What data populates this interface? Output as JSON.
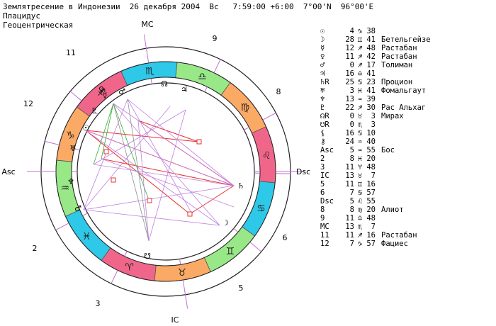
{
  "header": {
    "line1": "Землятресение в Индонезии  26 декабря 2004  Вс   7:59:00 +6:00  7°00'N  96°00'E",
    "line2": "Плацидус",
    "line3": "Геоцентрическая"
  },
  "wheel": {
    "angle_labels": {
      "mc": "MC",
      "ic": "IC",
      "asc": "Asc",
      "dsc": "Dsc"
    },
    "house_numbers": [
      "11",
      "9",
      "8",
      "12",
      "2",
      "6",
      "3",
      "5"
    ],
    "zodiac_glyphs": [
      "♏",
      "♎",
      "♍",
      "♌",
      "♋",
      "♊",
      "♉",
      "♈",
      "♓",
      "♒",
      "♑",
      "♐"
    ],
    "zodiac_colors": {
      "fire": "#f0668a",
      "earth": "#fbaa66",
      "air": "#99e888",
      "water": "#2ec8e8"
    },
    "planet_glyphs": [
      "☉",
      "☽",
      "☿",
      "♀",
      "♂",
      "♃",
      "♄",
      "♅",
      "♆",
      "♇",
      "☊",
      "☋"
    ],
    "aspect_colors": {
      "red": "#e83030",
      "green": "#30b030",
      "violet": "#c080e0",
      "gray": "#909090"
    }
  },
  "positions_table": [
    {
      "glyph": "☉",
      "deg": "4",
      "sign": "♑",
      "min": "38",
      "star": ""
    },
    {
      "glyph": "☽",
      "deg": "28",
      "sign": "♊",
      "min": "41",
      "star": "Бетельгейзе"
    },
    {
      "glyph": "☿",
      "deg": "12",
      "sign": "♐",
      "min": "48",
      "star": "Растабан"
    },
    {
      "glyph": "♀",
      "deg": "11",
      "sign": "♐",
      "min": "42",
      "star": "Растабан"
    },
    {
      "glyph": "♂",
      "deg": "0",
      "sign": "♐",
      "min": "17",
      "star": "Толиман"
    },
    {
      "glyph": "♃",
      "deg": "16",
      "sign": "♎",
      "min": "41",
      "star": ""
    },
    {
      "glyph": "♄R",
      "deg": "25",
      "sign": "♋",
      "min": "23",
      "star": "Процион"
    },
    {
      "glyph": "♅",
      "deg": "3",
      "sign": "♓",
      "min": "41",
      "star": "Фомальгаут"
    },
    {
      "glyph": "♆",
      "deg": "13",
      "sign": "♒",
      "min": "39",
      "star": ""
    },
    {
      "glyph": "♇",
      "deg": "22",
      "sign": "♐",
      "min": "30",
      "star": "Рас Альхаг"
    },
    {
      "glyph": "☊R",
      "deg": "0",
      "sign": "♉",
      "min": "3",
      "star": "Мирах"
    },
    {
      "glyph": "☋R",
      "deg": "0",
      "sign": "♏",
      "min": "3",
      "star": ""
    },
    {
      "glyph": "⚸",
      "deg": "16",
      "sign": "♋",
      "min": "10",
      "star": ""
    },
    {
      "glyph": "⚷",
      "deg": "24",
      "sign": "♒",
      "min": "40",
      "star": ""
    },
    {
      "glyph": "Asc",
      "deg": "5",
      "sign": "♒",
      "min": "55",
      "star": "Бос"
    },
    {
      "glyph": "2",
      "deg": "8",
      "sign": "♓",
      "min": "20",
      "star": ""
    },
    {
      "glyph": "3",
      "deg": "11",
      "sign": "♈",
      "min": "48",
      "star": ""
    },
    {
      "glyph": "IC",
      "deg": "13",
      "sign": "♉",
      "min": "7",
      "star": ""
    },
    {
      "glyph": "5",
      "deg": "11",
      "sign": "♊",
      "min": "16",
      "star": ""
    },
    {
      "glyph": "6",
      "deg": "7",
      "sign": "♋",
      "min": "57",
      "star": ""
    },
    {
      "glyph": "Dsc",
      "deg": "5",
      "sign": "♌",
      "min": "55",
      "star": ""
    },
    {
      "glyph": "8",
      "deg": "8",
      "sign": "♍",
      "min": "20",
      "star": "Алиот"
    },
    {
      "glyph": "9",
      "deg": "11",
      "sign": "♎",
      "min": "48",
      "star": ""
    },
    {
      "glyph": "MC",
      "deg": "13",
      "sign": "♏",
      "min": "7",
      "star": ""
    },
    {
      "glyph": "11",
      "deg": "11",
      "sign": "♐",
      "min": "16",
      "star": "Растабан"
    },
    {
      "glyph": "12",
      "deg": "7",
      "sign": "♑",
      "min": "57",
      "star": "Фациес"
    }
  ]
}
